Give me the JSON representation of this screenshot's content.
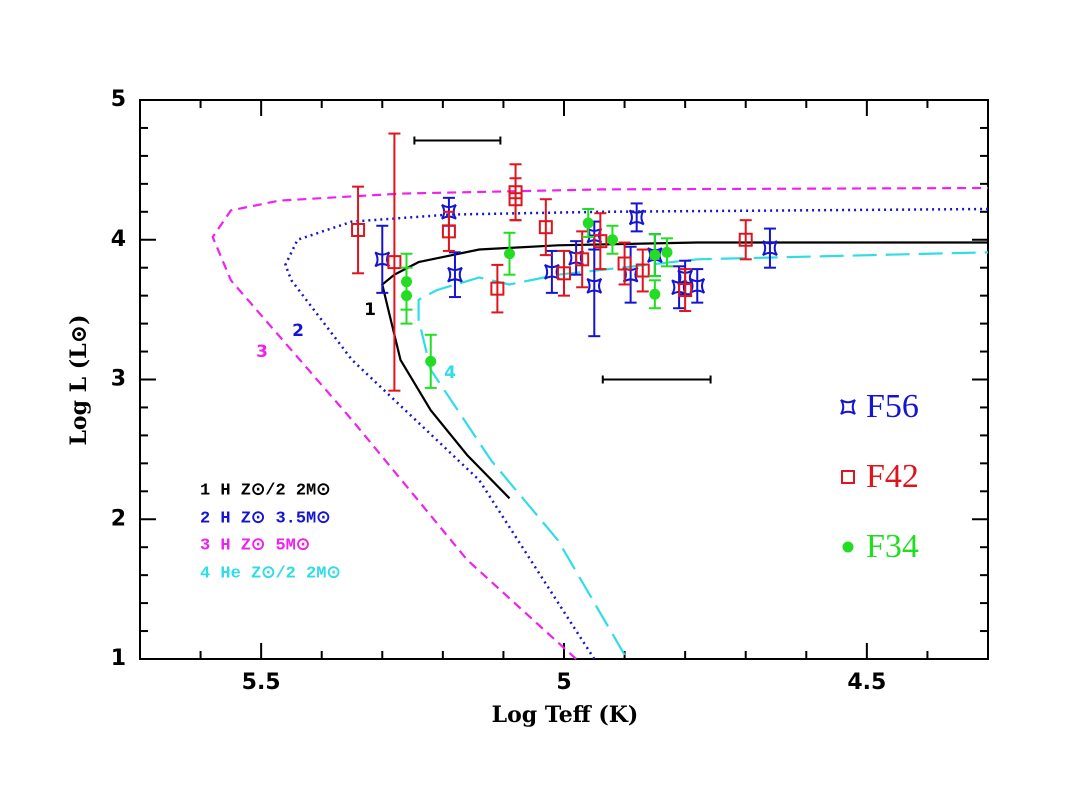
{
  "chart_data": {
    "type": "scatter",
    "x_label": "Log Teff (K)",
    "y_label": "Log L (L⊙)",
    "xlim": [
      5.7,
      4.3
    ],
    "ylim": [
      1,
      5
    ],
    "xticks": [
      5.5,
      5,
      4.5
    ],
    "yticks": [
      1,
      2,
      3,
      4,
      5
    ],
    "x_minor_ticks": [
      5.6,
      5.4,
      5.3,
      5.2,
      5.1,
      4.9,
      4.8,
      4.7,
      4.6,
      4.4
    ],
    "y_minor_ticks": [
      1.2,
      1.4,
      1.6,
      1.8,
      2.2,
      2.4,
      2.6,
      2.8,
      3.2,
      3.4,
      3.6,
      3.8,
      4.2,
      4.4,
      4.6,
      4.8
    ],
    "series": [
      {
        "name": "F56",
        "color": "#1414d2",
        "marker": "star",
        "x": [
          5.3,
          5.19,
          5.18,
          5.02,
          4.98,
          4.95,
          4.95,
          4.89,
          4.88,
          4.85,
          4.8,
          4.78,
          4.66,
          4.81
        ],
        "values": [
          3.86,
          4.2,
          3.75,
          3.77,
          3.87,
          3.67,
          4.03,
          3.75,
          4.16,
          3.89,
          3.73,
          3.67,
          3.94,
          3.66
        ],
        "errors": [
          0.24,
          0.1,
          0.16,
          0.15,
          0.12,
          0.36,
          0.1,
          0.2,
          0.1,
          0.15,
          0.12,
          0.12,
          0.14,
          0.15
        ]
      },
      {
        "name": "F42",
        "color": "#e0141c",
        "marker": "square",
        "x": [
          5.34,
          5.28,
          5.19,
          5.11,
          5.08,
          5.08,
          5.03,
          5.0,
          4.97,
          4.94,
          4.9,
          4.87,
          4.8,
          4.7
        ],
        "values": [
          4.07,
          3.84,
          4.06,
          3.65,
          4.34,
          4.29,
          4.09,
          3.76,
          3.86,
          3.99,
          3.83,
          3.78,
          3.64,
          4.0
        ],
        "errors": [
          0.31,
          0.92,
          0.14,
          0.17,
          0.2,
          0.15,
          0.2,
          0.16,
          0.2,
          0.2,
          0.15,
          0.15,
          0.15,
          0.14
        ]
      },
      {
        "name": "F34",
        "color": "#22dd22",
        "marker": "circle",
        "x": [
          5.26,
          5.26,
          5.22,
          5.09,
          4.96,
          4.92,
          4.85,
          4.85,
          4.83
        ],
        "values": [
          3.7,
          3.6,
          3.13,
          3.9,
          4.12,
          4.0,
          3.89,
          3.61,
          3.91
        ],
        "errors": [
          0.2,
          0.2,
          0.19,
          0.15,
          0.1,
          0.1,
          0.15,
          0.1,
          0.1
        ]
      }
    ],
    "tracks": [
      {
        "label": "1",
        "name": "1 H Z⊙/2 2M⊙",
        "color": "#000000",
        "dash": "solid",
        "x": [
          5.09,
          5.16,
          5.22,
          5.27,
          5.29,
          5.3,
          5.28,
          5.24,
          5.14,
          5.01,
          4.78,
          4.3
        ],
        "values": [
          2.15,
          2.46,
          2.78,
          3.14,
          3.5,
          3.68,
          3.75,
          3.84,
          3.93,
          3.96,
          3.98,
          3.98
        ]
      },
      {
        "label": "2",
        "name": "2 H Z⊙ 3.5M⊙",
        "color": "#1414d2",
        "dash": "dotted",
        "x": [
          4.95,
          5.14,
          5.35,
          5.45,
          5.46,
          5.44,
          5.35,
          5.19,
          4.94,
          4.3
        ],
        "values": [
          1.0,
          2.28,
          3.14,
          3.71,
          3.82,
          4.0,
          4.13,
          4.18,
          4.2,
          4.22
        ]
      },
      {
        "label": "3",
        "name": "3 H Z⊙ 5M⊙",
        "color": "#ee22ee",
        "dash": "dashed",
        "x": [
          4.98,
          5.16,
          5.35,
          5.55,
          5.58,
          5.55,
          5.47,
          5.27,
          4.94,
          4.3
        ],
        "values": [
          1.0,
          1.71,
          2.71,
          3.71,
          4.02,
          4.21,
          4.28,
          4.33,
          4.36,
          4.37
        ]
      },
      {
        "label": "4",
        "name": "4 He Z⊙/2 2M⊙",
        "color": "#30dde6",
        "dash": "longdash",
        "x": [
          4.9,
          5.01,
          5.12,
          5.22,
          5.24,
          5.24,
          5.21,
          5.14,
          5.09,
          5.01,
          4.78,
          4.3
        ],
        "values": [
          1.03,
          1.85,
          2.42,
          3.07,
          3.43,
          3.57,
          3.64,
          3.73,
          3.68,
          3.75,
          3.86,
          3.91
        ]
      }
    ],
    "error_scales": [
      {
        "x": 5.176,
        "y": 4.71,
        "xerr": 0.071
      },
      {
        "x": 4.847,
        "y": 3.0,
        "xerr": 0.089
      }
    ]
  }
}
